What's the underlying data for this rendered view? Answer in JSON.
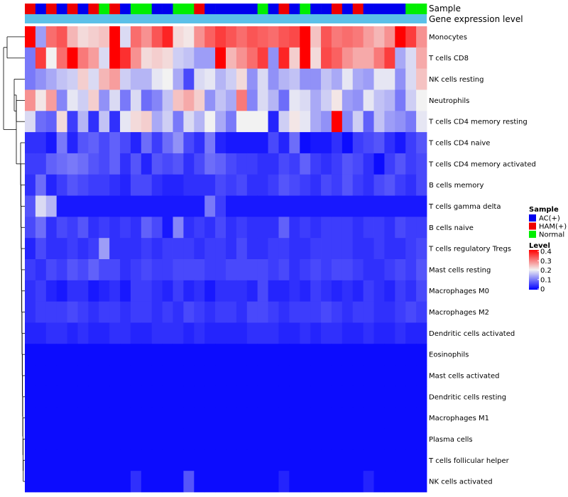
{
  "chart_data": {
    "type": "heatmap",
    "title": "",
    "annotation_tracks": [
      "Sample",
      "Gene expression level"
    ],
    "rows": [
      "Monocytes",
      "T cells CD8",
      "NK cells resting",
      "Neutrophils",
      "T cells CD4 memory resting",
      "T cells CD4 naive",
      "T cells CD4 memory activated",
      "B cells memory",
      "T cells gamma delta",
      "B cells naive",
      "T cells regulatory  Tregs",
      "Mast cells resting",
      "Macrophages M0",
      "Macrophages M2",
      "Dendritic cells activated",
      "Eosinophils",
      "Mast cells activated",
      "Dendritic cells resting",
      "Macrophages M1",
      "Plasma cells",
      "T cells follicular helper",
      "NK cells activated"
    ],
    "sample_groups": [
      "HAM(+)",
      "AC(+)",
      "HAM(+)",
      "AC(+)",
      "HAM(+)",
      "AC(+)",
      "HAM(+)",
      "Normal",
      "HAM(+)",
      "AC(+)",
      "Normal",
      "Normal",
      "AC(+)",
      "AC(+)",
      "Normal",
      "Normal",
      "HAM(+)",
      "AC(+)",
      "AC(+)",
      "AC(+)",
      "AC(+)",
      "AC(+)",
      "Normal",
      "AC(+)",
      "HAM(+)",
      "AC(+)",
      "Normal",
      "AC(+)",
      "AC(+)",
      "HAM(+)",
      "AC(+)",
      "HAM(+)",
      "AC(+)",
      "AC(+)",
      "AC(+)",
      "AC(+)",
      "Normal",
      "Normal"
    ],
    "values": [
      [
        0.4,
        0.13,
        0.31,
        0.33,
        0.25,
        0.22,
        0.23,
        0.24,
        0.4,
        0.18,
        0.31,
        0.28,
        0.33,
        0.37,
        0.22,
        0.21,
        0.28,
        0.32,
        0.35,
        0.33,
        0.31,
        0.33,
        0.32,
        0.31,
        0.33,
        0.34,
        0.4,
        0.24,
        0.33,
        0.3,
        0.31,
        0.3,
        0.27,
        0.25,
        0.28,
        0.4,
        0.35,
        0.28
      ],
      [
        0.1,
        0.35,
        0.2,
        0.31,
        0.4,
        0.3,
        0.27,
        0.18,
        0.4,
        0.36,
        0.28,
        0.22,
        0.23,
        0.22,
        0.17,
        0.16,
        0.13,
        0.13,
        0.4,
        0.25,
        0.28,
        0.31,
        0.35,
        0.12,
        0.37,
        0.23,
        0.4,
        0.22,
        0.34,
        0.32,
        0.28,
        0.26,
        0.26,
        0.3,
        0.35,
        0.14,
        0.18,
        0.26
      ],
      [
        0.1,
        0.12,
        0.14,
        0.16,
        0.17,
        0.23,
        0.18,
        0.25,
        0.27,
        0.17,
        0.15,
        0.15,
        0.19,
        0.2,
        0.14,
        0.06,
        0.18,
        0.19,
        0.15,
        0.17,
        0.22,
        0.12,
        0.18,
        0.12,
        0.15,
        0.16,
        0.12,
        0.12,
        0.16,
        0.14,
        0.19,
        0.14,
        0.13,
        0.19,
        0.19,
        0.12,
        0.18,
        0.24
      ],
      [
        0.28,
        0.21,
        0.27,
        0.11,
        0.19,
        0.17,
        0.23,
        0.12,
        0.18,
        0.1,
        0.18,
        0.09,
        0.11,
        0.16,
        0.24,
        0.26,
        0.23,
        0.12,
        0.16,
        0.14,
        0.3,
        0.11,
        0.18,
        0.15,
        0.09,
        0.19,
        0.18,
        0.14,
        0.17,
        0.21,
        0.13,
        0.12,
        0.19,
        0.16,
        0.15,
        0.1,
        0.17,
        0.2
      ],
      [
        0.18,
        0.09,
        0.08,
        0.22,
        0.05,
        0.15,
        0.04,
        0.16,
        0.04,
        0.19,
        0.22,
        0.23,
        0.14,
        0.17,
        0.1,
        0.18,
        0.15,
        0.2,
        0.14,
        0.1,
        0.2,
        0.2,
        0.2,
        0.03,
        0.17,
        0.21,
        0.19,
        0.14,
        0.12,
        0.4,
        0.11,
        0.17,
        0.08,
        0.16,
        0.13,
        0.12,
        0.1,
        0.19
      ],
      [
        0.04,
        0.04,
        0.02,
        0.1,
        0.03,
        0.07,
        0.08,
        0.06,
        0.08,
        0.06,
        0.03,
        0.09,
        0.05,
        0.09,
        0.12,
        0.06,
        0.04,
        0.1,
        0.03,
        0.02,
        0.02,
        0.02,
        0.02,
        0.06,
        0.03,
        0.09,
        0.01,
        0.02,
        0.02,
        0.04,
        0.01,
        0.05,
        0.06,
        0.07,
        0.04,
        0.02,
        0.05,
        0.07
      ],
      [
        0.05,
        0.05,
        0.08,
        0.09,
        0.1,
        0.09,
        0.07,
        0.06,
        0.08,
        0.04,
        0.07,
        0.03,
        0.07,
        0.06,
        0.07,
        0.04,
        0.06,
        0.09,
        0.08,
        0.06,
        0.05,
        0.05,
        0.04,
        0.04,
        0.06,
        0.05,
        0.08,
        0.05,
        0.04,
        0.05,
        0.07,
        0.06,
        0.04,
        0.01,
        0.05,
        0.07,
        0.05,
        0.06
      ],
      [
        0.04,
        0.09,
        0.03,
        0.05,
        0.07,
        0.06,
        0.05,
        0.05,
        0.04,
        0.03,
        0.06,
        0.06,
        0.04,
        0.03,
        0.03,
        0.04,
        0.04,
        0.04,
        0.06,
        0.05,
        0.06,
        0.04,
        0.04,
        0.05,
        0.07,
        0.06,
        0.05,
        0.04,
        0.06,
        0.05,
        0.07,
        0.05,
        0.04,
        0.06,
        0.07,
        0.05,
        0.04,
        0.06
      ],
      [
        0.07,
        0.18,
        0.15,
        0.02,
        0.02,
        0.02,
        0.02,
        0.02,
        0.02,
        0.02,
        0.02,
        0.02,
        0.02,
        0.02,
        0.02,
        0.02,
        0.02,
        0.1,
        0.05,
        0.02,
        0.02,
        0.02,
        0.02,
        0.02,
        0.02,
        0.02,
        0.02,
        0.02,
        0.02,
        0.02,
        0.02,
        0.02,
        0.02,
        0.02,
        0.02,
        0.02,
        0.02,
        0.02
      ],
      [
        0.06,
        0.09,
        0.04,
        0.06,
        0.05,
        0.07,
        0.04,
        0.05,
        0.04,
        0.05,
        0.04,
        0.08,
        0.06,
        0.02,
        0.11,
        0.04,
        0.05,
        0.04,
        0.06,
        0.04,
        0.05,
        0.04,
        0.04,
        0.04,
        0.08,
        0.04,
        0.05,
        0.04,
        0.05,
        0.05,
        0.05,
        0.04,
        0.05,
        0.05,
        0.04,
        0.06,
        0.05,
        0.05
      ],
      [
        0.03,
        0.06,
        0.04,
        0.04,
        0.05,
        0.04,
        0.05,
        0.13,
        0.04,
        0.04,
        0.04,
        0.05,
        0.04,
        0.05,
        0.05,
        0.05,
        0.04,
        0.05,
        0.05,
        0.04,
        0.06,
        0.04,
        0.04,
        0.05,
        0.05,
        0.04,
        0.04,
        0.05,
        0.05,
        0.05,
        0.05,
        0.04,
        0.04,
        0.05,
        0.04,
        0.04,
        0.05,
        0.06
      ],
      [
        0.05,
        0.04,
        0.06,
        0.05,
        0.07,
        0.06,
        0.08,
        0.06,
        0.06,
        0.04,
        0.05,
        0.06,
        0.05,
        0.05,
        0.06,
        0.06,
        0.06,
        0.05,
        0.05,
        0.06,
        0.06,
        0.06,
        0.06,
        0.05,
        0.06,
        0.04,
        0.05,
        0.06,
        0.05,
        0.06,
        0.06,
        0.05,
        0.04,
        0.04,
        0.05,
        0.06,
        0.05,
        0.07
      ],
      [
        0.04,
        0.05,
        0.03,
        0.02,
        0.04,
        0.04,
        0.02,
        0.03,
        0.04,
        0.02,
        0.05,
        0.05,
        0.04,
        0.03,
        0.05,
        0.03,
        0.04,
        0.02,
        0.04,
        0.04,
        0.04,
        0.03,
        0.06,
        0.03,
        0.03,
        0.04,
        0.03,
        0.05,
        0.04,
        0.03,
        0.04,
        0.03,
        0.05,
        0.04,
        0.03,
        0.05,
        0.04,
        0.06
      ],
      [
        0.04,
        0.05,
        0.05,
        0.05,
        0.06,
        0.05,
        0.04,
        0.05,
        0.05,
        0.04,
        0.05,
        0.05,
        0.04,
        0.05,
        0.04,
        0.06,
        0.05,
        0.04,
        0.05,
        0.05,
        0.04,
        0.06,
        0.06,
        0.05,
        0.04,
        0.05,
        0.05,
        0.05,
        0.06,
        0.05,
        0.04,
        0.05,
        0.05,
        0.04,
        0.04,
        0.05,
        0.06,
        0.05
      ],
      [
        0.03,
        0.03,
        0.04,
        0.04,
        0.03,
        0.04,
        0.03,
        0.03,
        0.04,
        0.04,
        0.03,
        0.03,
        0.04,
        0.04,
        0.04,
        0.03,
        0.04,
        0.03,
        0.03,
        0.03,
        0.03,
        0.04,
        0.04,
        0.04,
        0.03,
        0.03,
        0.04,
        0.03,
        0.04,
        0.04,
        0.03,
        0.03,
        0.04,
        0.03,
        0.03,
        0.04,
        0.03,
        0.03
      ],
      [
        0.01,
        0.01,
        0.01,
        0.01,
        0.01,
        0.01,
        0.01,
        0.01,
        0.01,
        0.01,
        0.01,
        0.01,
        0.01,
        0.01,
        0.01,
        0.01,
        0.01,
        0.01,
        0.01,
        0.01,
        0.01,
        0.01,
        0.01,
        0.01,
        0.01,
        0.01,
        0.01,
        0.01,
        0.01,
        0.01,
        0.01,
        0.01,
        0.01,
        0.01,
        0.01,
        0.01,
        0.01,
        0.01
      ],
      [
        0.01,
        0.01,
        0.01,
        0.01,
        0.01,
        0.01,
        0.01,
        0.01,
        0.01,
        0.01,
        0.01,
        0.01,
        0.01,
        0.01,
        0.01,
        0.01,
        0.01,
        0.01,
        0.01,
        0.01,
        0.01,
        0.01,
        0.01,
        0.01,
        0.01,
        0.01,
        0.01,
        0.01,
        0.01,
        0.01,
        0.01,
        0.01,
        0.01,
        0.01,
        0.01,
        0.01,
        0.01,
        0.01
      ],
      [
        0.01,
        0.01,
        0.01,
        0.01,
        0.01,
        0.01,
        0.01,
        0.01,
        0.01,
        0.01,
        0.01,
        0.01,
        0.01,
        0.01,
        0.01,
        0.01,
        0.01,
        0.01,
        0.01,
        0.01,
        0.01,
        0.01,
        0.01,
        0.01,
        0.01,
        0.01,
        0.01,
        0.01,
        0.01,
        0.01,
        0.01,
        0.01,
        0.01,
        0.01,
        0.01,
        0.01,
        0.01,
        0.01
      ],
      [
        0.01,
        0.01,
        0.01,
        0.01,
        0.01,
        0.01,
        0.01,
        0.01,
        0.01,
        0.01,
        0.01,
        0.01,
        0.01,
        0.01,
        0.01,
        0.01,
        0.01,
        0.01,
        0.01,
        0.01,
        0.01,
        0.01,
        0.01,
        0.01,
        0.01,
        0.01,
        0.01,
        0.01,
        0.01,
        0.01,
        0.01,
        0.01,
        0.01,
        0.01,
        0.01,
        0.01,
        0.01,
        0.01
      ],
      [
        0.01,
        0.01,
        0.01,
        0.01,
        0.01,
        0.01,
        0.01,
        0.01,
        0.01,
        0.01,
        0.01,
        0.01,
        0.01,
        0.01,
        0.01,
        0.01,
        0.01,
        0.01,
        0.01,
        0.01,
        0.01,
        0.01,
        0.01,
        0.01,
        0.01,
        0.01,
        0.01,
        0.01,
        0.01,
        0.01,
        0.01,
        0.01,
        0.01,
        0.01,
        0.01,
        0.01,
        0.01,
        0.01
      ],
      [
        0.01,
        0.01,
        0.01,
        0.01,
        0.01,
        0.01,
        0.01,
        0.01,
        0.01,
        0.01,
        0.01,
        0.01,
        0.01,
        0.01,
        0.01,
        0.01,
        0.01,
        0.01,
        0.01,
        0.01,
        0.01,
        0.01,
        0.01,
        0.01,
        0.01,
        0.01,
        0.01,
        0.01,
        0.01,
        0.01,
        0.01,
        0.01,
        0.01,
        0.01,
        0.01,
        0.01,
        0.01,
        0.01
      ],
      [
        0.01,
        0.01,
        0.01,
        0.01,
        0.01,
        0.01,
        0.01,
        0.01,
        0.01,
        0.01,
        0.04,
        0.01,
        0.01,
        0.01,
        0.01,
        0.07,
        0.01,
        0.01,
        0.01,
        0.01,
        0.01,
        0.01,
        0.01,
        0.01,
        0.03,
        0.01,
        0.01,
        0.01,
        0.01,
        0.01,
        0.01,
        0.01,
        0.03,
        0.01,
        0.01,
        0.01,
        0.01,
        0.01
      ]
    ],
    "value_range": [
      0,
      0.4
    ],
    "colors": {
      "low": "#0000ff",
      "mid": "#f2f2f2",
      "high": "#ff0000",
      "expression_track": "#5bc0e8"
    },
    "legend": {
      "sample_title": "Sample",
      "sample_entries": [
        {
          "label": "AC(+)",
          "color": "#0000ee"
        },
        {
          "label": "HAM(+)",
          "color": "#ee0000"
        },
        {
          "label": "Normal",
          "color": "#00ee00"
        }
      ],
      "level_title": "Level",
      "level_ticks": [
        "0.4",
        "0.3",
        "0.2",
        "0.1",
        "0"
      ],
      "level_tick_values": [
        0.4,
        0.3,
        0.2,
        0.1,
        0
      ],
      "placement": "right"
    }
  }
}
